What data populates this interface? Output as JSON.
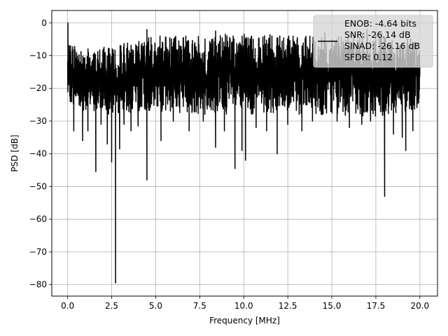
{
  "chart_data": {
    "type": "line",
    "title": "",
    "xlabel": "Frequency [MHz]",
    "ylabel": "PSD [dB]",
    "xlim": [
      -0.9,
      21.0
    ],
    "ylim": [
      -83.5,
      3.8
    ],
    "xticks": [
      0.0,
      2.5,
      5.0,
      7.5,
      10.0,
      12.5,
      15.0,
      17.5,
      20.0
    ],
    "xtick_labels": [
      "0.0",
      "2.5",
      "5.0",
      "7.5",
      "10.0",
      "12.5",
      "15.0",
      "17.5",
      "20.0"
    ],
    "yticks": [
      0,
      -10,
      -20,
      -30,
      -40,
      -50,
      -60,
      -70,
      -80
    ],
    "ytick_labels": [
      "0",
      "−10",
      "−20",
      "−30",
      "−40",
      "−50",
      "−60",
      "−70",
      "−80"
    ],
    "grid": true,
    "legend_position": "top-right",
    "series": [
      {
        "name": "ENOB: -4.64 bits\nSNR: -26.14 dB\nSINAD: -26.16 dB\nSFDR: 0.12",
        "color": "#000000",
        "x_range": [
          0.0,
          20.0
        ],
        "band_upper": [
          [
            0.0,
            -6
          ],
          [
            1.0,
            -8
          ],
          [
            2.5,
            -7
          ],
          [
            5.0,
            -4
          ],
          [
            7.5,
            -4
          ],
          [
            10.0,
            -3
          ],
          [
            12.5,
            -4
          ],
          [
            15.0,
            -4
          ],
          [
            17.5,
            -3
          ],
          [
            20.0,
            -5
          ]
        ],
        "band_lower": [
          [
            0.0,
            -24
          ],
          [
            1.0,
            -27
          ],
          [
            2.5,
            -28
          ],
          [
            5.0,
            -27
          ],
          [
            7.5,
            -28
          ],
          [
            10.0,
            -28
          ],
          [
            12.5,
            -28
          ],
          [
            15.0,
            -28
          ],
          [
            17.5,
            -29
          ],
          [
            20.0,
            -26
          ]
        ],
        "spikes_down": [
          [
            0.35,
            -33
          ],
          [
            0.85,
            -36
          ],
          [
            1.15,
            -33
          ],
          [
            1.6,
            -45.5
          ],
          [
            1.9,
            -31
          ],
          [
            2.25,
            -37
          ],
          [
            2.5,
            -42.5
          ],
          [
            2.72,
            -79.5
          ],
          [
            2.95,
            -38.5
          ],
          [
            3.2,
            -31
          ],
          [
            3.6,
            -33
          ],
          [
            4.0,
            -31.5
          ],
          [
            4.5,
            -48
          ],
          [
            5.3,
            -36
          ],
          [
            6.0,
            -30
          ],
          [
            6.9,
            -33
          ],
          [
            7.7,
            -30
          ],
          [
            8.4,
            -38
          ],
          [
            8.9,
            -33
          ],
          [
            9.5,
            -44.5
          ],
          [
            9.9,
            -39
          ],
          [
            10.1,
            -42
          ],
          [
            10.7,
            -32
          ],
          [
            11.3,
            -33
          ],
          [
            11.9,
            -40
          ],
          [
            12.5,
            -31
          ],
          [
            13.3,
            -33
          ],
          [
            13.9,
            -30
          ],
          [
            14.4,
            -28
          ],
          [
            15.3,
            -30
          ],
          [
            16.0,
            -32
          ],
          [
            16.7,
            -31
          ],
          [
            17.2,
            -30
          ],
          [
            18.0,
            -53
          ],
          [
            18.5,
            -34
          ],
          [
            19.0,
            -35
          ],
          [
            19.2,
            -39
          ],
          [
            19.6,
            -33
          ]
        ],
        "spikes_up": [
          [
            0.02,
            0.0
          ],
          [
            0.1,
            -7
          ],
          [
            4.5,
            -2
          ],
          [
            8.4,
            -2.5
          ],
          [
            14.6,
            -3
          ],
          [
            17.0,
            -2
          ]
        ]
      }
    ]
  }
}
